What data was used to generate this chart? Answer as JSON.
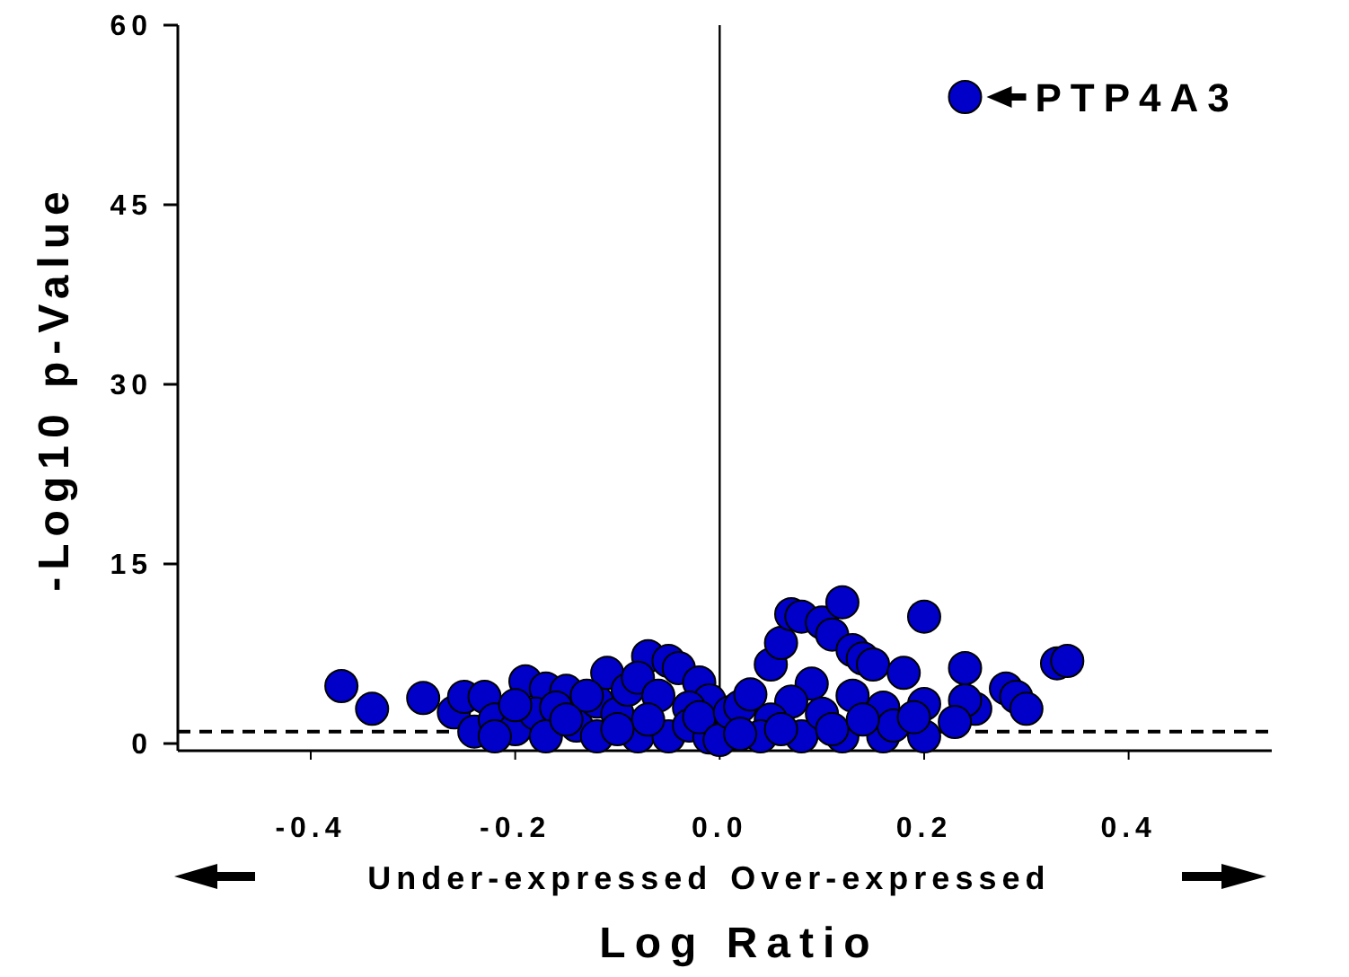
{
  "chart_data": {
    "type": "scatter",
    "xlabel": "Log Ratio",
    "ylabel": "-Log10 p-Value",
    "xlim": [
      -0.53,
      0.54
    ],
    "ylim": [
      -0.6,
      60
    ],
    "xticks": [
      {
        "value": -0.4,
        "label": "-0.4"
      },
      {
        "value": -0.2,
        "label": "-0.2"
      },
      {
        "value": 0,
        "label": "0.0"
      },
      {
        "value": 0.2,
        "label": "0.2"
      },
      {
        "value": 0.4,
        "label": "0.4"
      }
    ],
    "yticks": [
      0,
      15,
      30,
      45,
      60
    ],
    "marker": "circle",
    "grid": false,
    "series": [
      {
        "color": "#0000c8",
        "x": [
          -0.37,
          -0.34,
          -0.29,
          -0.26,
          -0.25,
          -0.23,
          -0.24,
          -0.22,
          -0.2,
          -0.19,
          -0.17,
          -0.15,
          -0.18,
          -0.16,
          -0.14,
          -0.12,
          -0.11,
          -0.1,
          -0.09,
          -0.07,
          -0.05,
          -0.04,
          -0.02,
          -0.01,
          -0.08,
          -0.06,
          -0.03,
          -0.13,
          -0.12,
          -0.17,
          -0.22,
          -0.08,
          -0.05,
          -0.03,
          -0.07,
          -0.1,
          -0.15,
          -0.01,
          -0.02,
          -0.2,
          0.0,
          0.01,
          0.02,
          0.03,
          0.05,
          0.06,
          0.07,
          0.08,
          0.1,
          0.11,
          0.12,
          0.13,
          0.14,
          0.15,
          0.18,
          0.2,
          0.24,
          0.33,
          0.34,
          0.28,
          0.29,
          0.3,
          0.25,
          0.24,
          0.23,
          0.2,
          0.09,
          0.07,
          0.05,
          0.04,
          0.08,
          0.12,
          0.16,
          0.2,
          0.1,
          0.13,
          0.16,
          0.17,
          0.11,
          0.06,
          0.02,
          0.14,
          0.19,
          0.24
        ],
        "values": [
          4.8,
          2.9,
          3.8,
          2.6,
          3.9,
          3.9,
          1.0,
          2.0,
          1.2,
          5.2,
          4.6,
          4.4,
          2.5,
          3.0,
          1.5,
          3.5,
          5.9,
          2.5,
          4.5,
          7.3,
          6.9,
          6.3,
          5.1,
          3.6,
          5.5,
          4.0,
          3.0,
          4.0,
          0.6,
          0.6,
          0.6,
          0.6,
          0.6,
          1.5,
          2.0,
          1.2,
          2.0,
          0.5,
          2.2,
          3.2,
          0.3,
          2.6,
          3.1,
          4.1,
          6.6,
          8.4,
          10.8,
          10.6,
          10.1,
          9.1,
          11.8,
          7.8,
          7.1,
          6.6,
          5.9,
          10.6,
          6.3,
          6.7,
          6.9,
          4.6,
          3.9,
          2.9,
          2.9,
          3.6,
          1.8,
          3.3,
          5.0,
          3.5,
          2.0,
          0.6,
          0.6,
          0.6,
          0.6,
          0.6,
          2.5,
          4.0,
          3.0,
          1.5,
          1.2,
          1.2,
          0.8,
          2.0,
          2.2,
          54
        ]
      }
    ],
    "ref_lines": [
      {
        "axis": "y",
        "value": 1,
        "line_style": "dashed"
      },
      {
        "axis": "x",
        "value": 0,
        "line_style": "solid"
      }
    ],
    "annotations": [
      "Under-expressed",
      "Over-expressed",
      {
        "text": "PTP4A3",
        "x": 0.24,
        "y": 54
      }
    ]
  }
}
